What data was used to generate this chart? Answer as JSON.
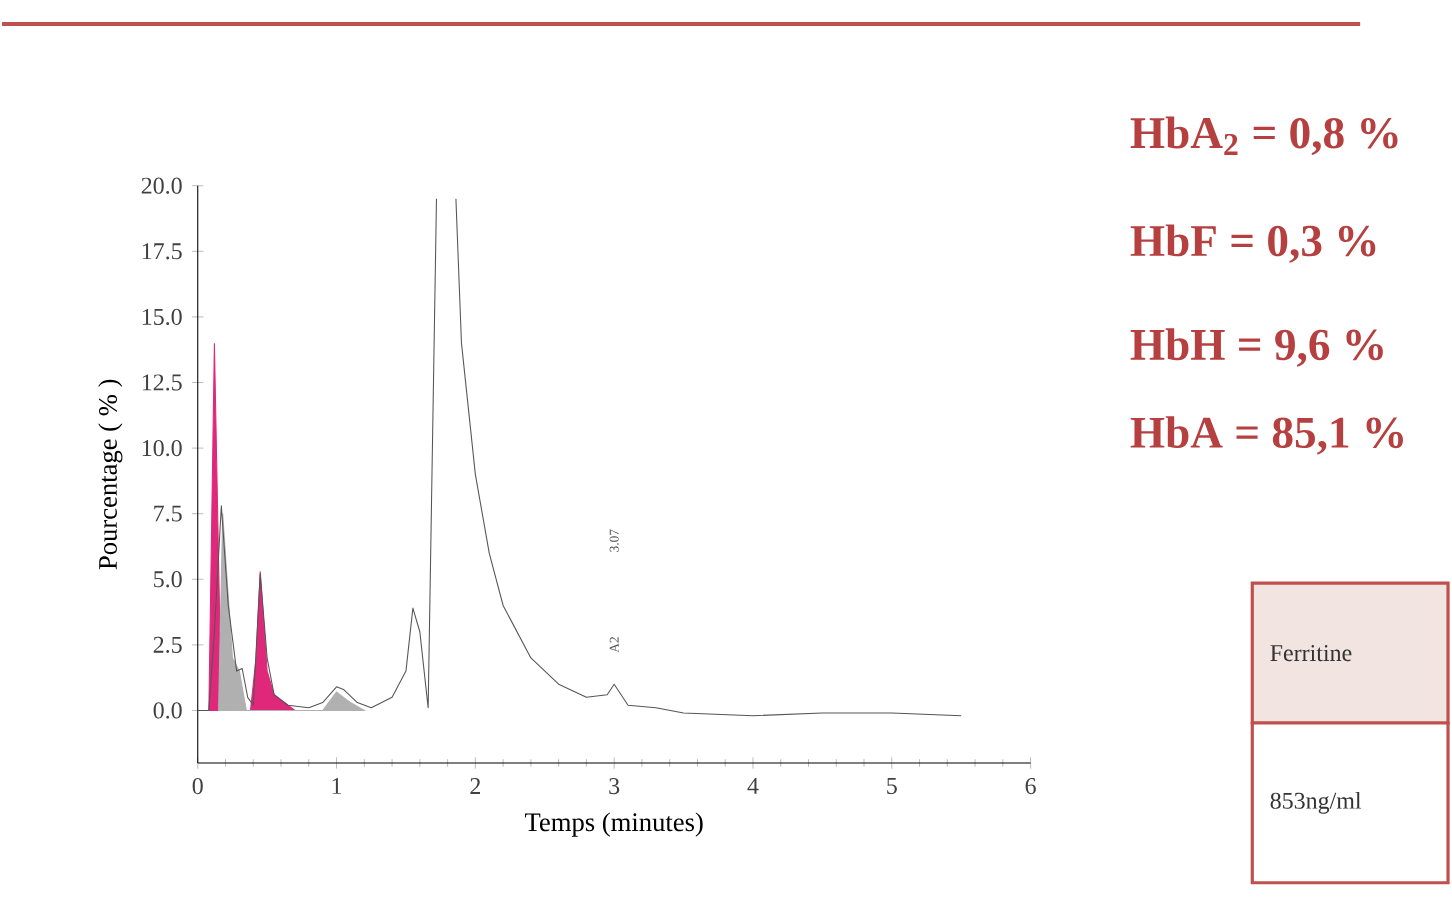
{
  "chart_data": {
    "type": "line",
    "xlabel": "Temps (minutes)",
    "ylabel": "Pourcentage ( % )",
    "xlim": [
      0,
      6
    ],
    "ylim": [
      -2,
      20
    ],
    "xticks": [
      0,
      1,
      2,
      3,
      4,
      5,
      6
    ],
    "yticks": [
      {
        "value": 0,
        "label": "0.0"
      },
      {
        "value": 2.5,
        "label": "2.5"
      },
      {
        "value": 5,
        "label": "5.0"
      },
      {
        "value": 7.5,
        "label": "7.5"
      },
      {
        "value": 10,
        "label": "10.0"
      },
      {
        "value": 12.5,
        "label": "12.5"
      },
      {
        "value": 15,
        "label": "15.0"
      },
      {
        "value": 17.5,
        "label": "17.5"
      },
      {
        "value": 20,
        "label": "20.0"
      }
    ],
    "grid": false,
    "marker": "none",
    "line_style": "solid",
    "series": [
      {
        "type": "area",
        "color": "#e0287a",
        "x": [
          0.08,
          0.12,
          0.16,
          0.2,
          0.38,
          0.42,
          0.45,
          0.5,
          0.55,
          0.65,
          0.7
        ],
        "values": [
          0,
          14,
          3,
          0,
          0,
          2,
          5.3,
          1.5,
          0.6,
          0.2,
          0
        ]
      },
      {
        "type": "area",
        "color": "#b0b0b0",
        "x": [
          0.15,
          0.18,
          0.25,
          0.3,
          0.35,
          0.9,
          1.0,
          1.1,
          1.2
        ],
        "values": [
          0,
          7.5,
          2,
          1.5,
          0,
          0,
          0.7,
          0.3,
          0
        ]
      },
      {
        "color": "#555555",
        "x": [
          0.0,
          0.08,
          0.12,
          0.17,
          0.22,
          0.28,
          0.32,
          0.36,
          0.4,
          0.45,
          0.5,
          0.55,
          0.65,
          0.8,
          0.9,
          1.0,
          1.05,
          1.15,
          1.25,
          1.4,
          1.5,
          1.55,
          1.6,
          1.66,
          1.72,
          1.79,
          1.86,
          1.9,
          2.0,
          2.1,
          2.2,
          2.4,
          2.6,
          2.8,
          2.95,
          3.0,
          3.05,
          3.1,
          3.3,
          3.5,
          4.0,
          4.5,
          5.0,
          5.5
        ],
        "values": [
          0,
          0,
          3,
          7.8,
          4,
          1.5,
          1.6,
          0.5,
          0.2,
          5.2,
          2,
          0.6,
          0.2,
          0.1,
          0.3,
          0.9,
          0.8,
          0.3,
          0.1,
          0.5,
          1.5,
          3.9,
          3.0,
          0.1,
          19.5,
          null,
          19.5,
          14,
          9,
          6,
          4,
          2,
          1,
          0.5,
          0.6,
          1.0,
          0.6,
          0.2,
          0.1,
          -0.1,
          -0.2,
          -0.1,
          -0.1,
          -0.2
        ]
      }
    ],
    "annotations": [
      "3.07",
      "A2",
      "HbA$_{2}$ = 0,8 %",
      "HbF = 0,3 %",
      "HbH = 9,6 %",
      "HbA = 85,1 %",
      "Ferritine",
      "853ng/ml"
    ]
  }
}
